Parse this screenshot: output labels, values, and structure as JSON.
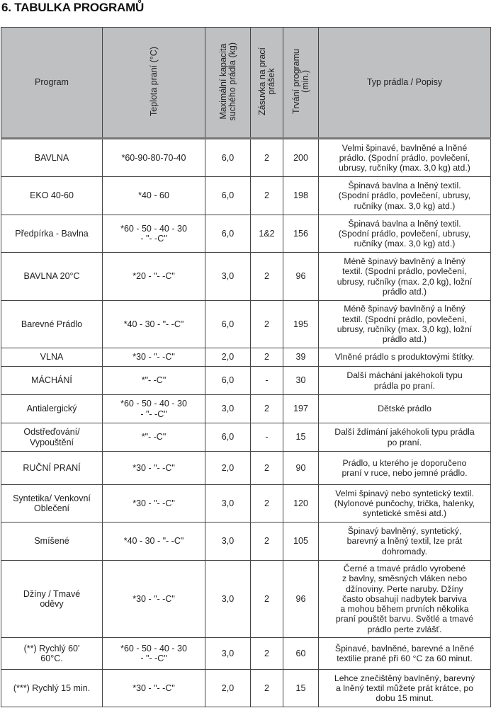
{
  "title": "6. TABULKA PROGRAMŮ",
  "headers": {
    "program": "Program",
    "temperature": "Teplota praní (°C)",
    "capacity": "Maximální kapacita\nsuchého prádla (kg)",
    "drawer": "Zásuvka na prací\nprášek",
    "duration": "Trvání programu\n(min.)",
    "description": "Typ prádla / Popisy"
  },
  "rows": [
    {
      "program": "BAVLNA",
      "temp": "*60-90-80-70-40",
      "capacity": "6,0",
      "drawer": "2",
      "duration": "200",
      "desc": "Velmi špinavé, bavlněné a lněné\nprádlo. (Spodní prádlo, povlečení,\nubrusy, ručníky (max. 3,0 kg) atd.)"
    },
    {
      "program": "EKO 40-60",
      "temp": "*40 - 60",
      "capacity": "6,0",
      "drawer": "2",
      "duration": "198",
      "desc": "Špinavá bavlna a lněný textil.\n(Spodní prádlo, povlečení, ubrusy,\nručníky (max. 3,0 kg) atd.)"
    },
    {
      "program": "Předpírka - Bavlna",
      "temp": "*60 - 50 - 40 - 30\n- \"- -C\"",
      "capacity": "6,0",
      "drawer": "1&2",
      "duration": "156",
      "desc": "Špinavá bavlna a lněný textil.\n(Spodní prádlo, povlečení, ubrusy,\nručníky (max. 3,0 kg) atd.)"
    },
    {
      "program": "BAVLNA 20°C",
      "temp": "*20 - \"- -C\"",
      "capacity": "3,0",
      "drawer": "2",
      "duration": "96",
      "desc": "Méně špinavý bavlněný a lněný\ntextil. (Spodní prádlo, povlečení,\nubrusy, ručníky (max. 2,0 kg), ložní\nprádlo atd.)"
    },
    {
      "program": "Barevné Prádlo",
      "temp": "*40 - 30 - \"- -C\"",
      "capacity": "6,0",
      "drawer": "2",
      "duration": "195",
      "desc": "Méně špinavý bavlněný a lněný\ntextil. (Spodní prádlo, povlečení,\nubrusy, ručníky (max. 3,0 kg), ložní\nprádlo atd.)"
    },
    {
      "program": "VLNA",
      "temp": "*30 - \"- -C\"",
      "capacity": "2,0",
      "drawer": "2",
      "duration": "39",
      "desc": "Vlněné prádlo s produktovými štítky."
    },
    {
      "program": "MÁCHÁNÍ",
      "temp": "*\"- -C\"",
      "capacity": "6,0",
      "drawer": "-",
      "duration": "30",
      "desc": "Další máchání jakéhokoli typu\nprádla po praní."
    },
    {
      "program": "Antialergický",
      "temp": "*60 - 50 - 40 - 30\n- \"- -C\"",
      "capacity": "3,0",
      "drawer": "2",
      "duration": "197",
      "desc": "Dětské prádlo"
    },
    {
      "program": "Odstřeďování/\nVypouštění",
      "temp": "*\"- -C\"",
      "capacity": "6,0",
      "drawer": "-",
      "duration": "15",
      "desc": "Další ždímání jakéhokoli typu prádla\npo praní."
    },
    {
      "program": "RUČNÍ PRANÍ",
      "temp": "*30 - \"- -C\"",
      "capacity": "2,0",
      "drawer": "2",
      "duration": "90",
      "desc": "Prádlo, u kterého je doporučeno\npraní v ruce, nebo jemné prádlo."
    },
    {
      "program": "Syntetika/ Venkovní\nOblečení",
      "temp": "*30 - \"- -C\"",
      "capacity": "3,0",
      "drawer": "2",
      "duration": "120",
      "desc": "Velmi špinavý nebo syntetický textil.\n(Nylonové punčochy, trička, halenky,\nsyntetické směsi atd.)"
    },
    {
      "program": "Smíšené",
      "temp": "*40 - 30 - \"- -C\"",
      "capacity": "3,0",
      "drawer": "2",
      "duration": "105",
      "desc": "Špinavý bavlněný, syntetický,\nbarevný a lněný textil, lze prát\ndohromady."
    },
    {
      "program": "Džíny / Tmavé\noděvy",
      "temp": "*30 - \"- -C\"",
      "capacity": "3,0",
      "drawer": "2",
      "duration": "96",
      "desc": "Černé a tmavé prádlo vyrobené\nz bavlny, směsných vláken nebo\ndžínoviny. Perte naruby. Džíny\nčasto obsahují nadbytek barviva\na mohou během prvních několika\npraní pouštět barvu. Světlé a tmavé\nprádlo perte zvlášť."
    },
    {
      "program": "(**) Rychlý 60'\n60°C.",
      "temp": "*60 - 50 - 40 - 30\n- \"- -C\"",
      "capacity": "3,0",
      "drawer": "2",
      "duration": "60",
      "desc": "Špinavé, bavlněné, barevné a lněné\ntextilie prané při 60 °C za 60 minut."
    },
    {
      "program": "(***) Rychlý 15 min.",
      "temp": "*30 - \"- -C\"",
      "capacity": "2,0",
      "drawer": "2",
      "duration": "15",
      "desc": "Lehce znečištěný bavlněný, barevný\na lněný textil můžete prát krátce, po\ndobu 15 minut."
    }
  ]
}
